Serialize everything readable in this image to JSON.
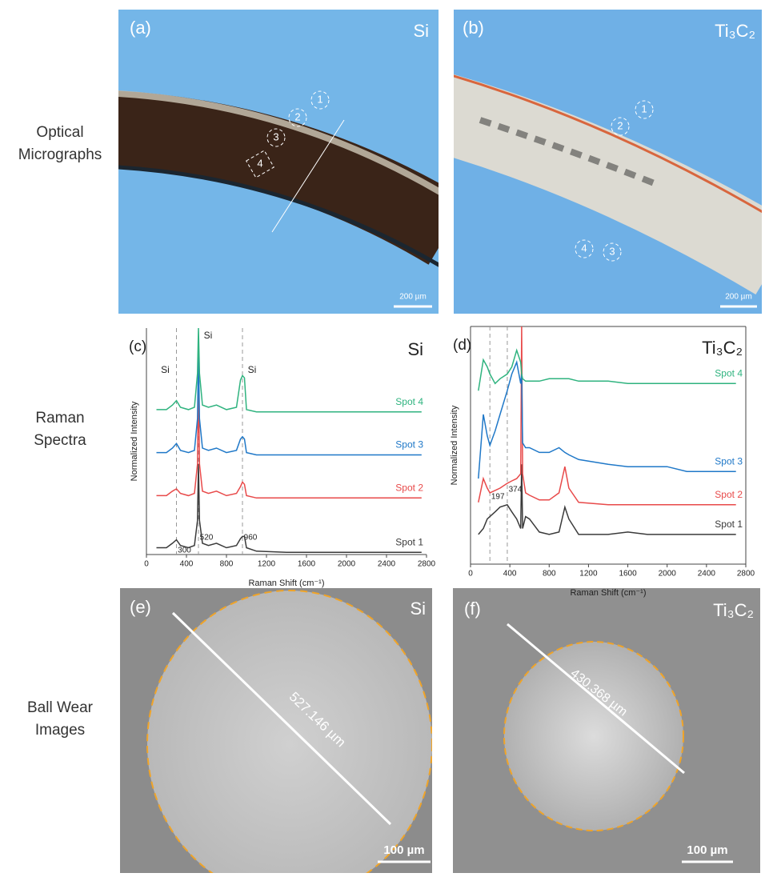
{
  "row_labels": [
    [
      "Optical",
      "Micrographs"
    ],
    [
      "Raman",
      "Spectra"
    ],
    [
      "Ball Wear",
      "Images"
    ]
  ],
  "micrographs": [
    {
      "label": "(a)",
      "title": "Si",
      "spots": [
        "1",
        "2",
        "3",
        "4"
      ],
      "scale_bar": "200 µm"
    },
    {
      "label": "(b)",
      "title": "Ti₃C₂",
      "spots": [
        "1",
        "2",
        "3",
        "4"
      ],
      "scale_bar": "200 µm"
    }
  ],
  "ball_wear": [
    {
      "label": "(e)",
      "title": "Si",
      "diameter": "527.146 µm",
      "scale_bar": "100 µm"
    },
    {
      "label": "(f)",
      "title": "Ti₃C₂",
      "diameter": "430.368 µm",
      "scale_bar": "100 µm"
    }
  ],
  "chart_data": [
    {
      "type": "line",
      "label": "(c)",
      "title": "Si",
      "xlabel": "Raman Shift (cm⁻¹)",
      "ylabel": "Normalized Intensity",
      "xlim": [
        0,
        2800
      ],
      "xticks": [
        0,
        400,
        800,
        1200,
        1600,
        2000,
        2400,
        2800
      ],
      "ylim": [
        0,
        10
      ],
      "x": [
        100,
        200,
        260,
        300,
        340,
        420,
        480,
        510,
        520,
        530,
        560,
        620,
        700,
        800,
        900,
        940,
        960,
        980,
        1000,
        1100,
        1400,
        1800,
        2200,
        2600,
        2750
      ],
      "series": [
        {
          "name": "Spot 1",
          "color": "#3a3a3a",
          "values": [
            0.3,
            0.3,
            0.5,
            0.65,
            0.4,
            0.3,
            0.4,
            1.5,
            4,
            1.5,
            0.5,
            0.4,
            0.5,
            0.3,
            0.4,
            0.7,
            0.8,
            0.8,
            0.3,
            0.15,
            0.1,
            0.1,
            0.1,
            0.1,
            0.1
          ]
        },
        {
          "name": "Spot 2",
          "color": "#e84a4a",
          "values": [
            2.6,
            2.6,
            2.8,
            2.9,
            2.7,
            2.6,
            2.7,
            4,
            8,
            4,
            2.8,
            2.7,
            2.8,
            2.6,
            2.7,
            3,
            3.2,
            3.1,
            2.6,
            2.5,
            2.5,
            2.5,
            2.5,
            2.5,
            2.5
          ]
        },
        {
          "name": "Spot 3",
          "color": "#1f78c8",
          "values": [
            4.5,
            4.5,
            4.7,
            4.9,
            4.6,
            4.5,
            4.6,
            6,
            9,
            6,
            4.7,
            4.6,
            4.7,
            4.5,
            4.6,
            5.1,
            5.2,
            5.1,
            4.5,
            4.4,
            4.4,
            4.4,
            4.4,
            4.4,
            4.4
          ]
        },
        {
          "name": "Spot 4",
          "color": "#2fb37f",
          "values": [
            6.4,
            6.4,
            6.6,
            6.8,
            6.5,
            6.4,
            6.5,
            8,
            10,
            8,
            6.6,
            6.5,
            6.6,
            6.4,
            6.5,
            7.7,
            7.9,
            7.8,
            6.4,
            6.3,
            6.3,
            6.3,
            6.3,
            6.3,
            6.3
          ]
        }
      ],
      "peak_labels": [
        300,
        520,
        960
      ],
      "annotations": [
        {
          "x": 300,
          "text": "Si"
        },
        {
          "x": 520,
          "text": "Si"
        },
        {
          "x": 960,
          "text": "Si"
        }
      ]
    },
    {
      "type": "line",
      "label": "(d)",
      "title": "Ti₃C₂",
      "xlabel": "Raman Shift (cm⁻¹)",
      "ylabel": "Normalized Intensity",
      "xlim": [
        0,
        2800
      ],
      "xticks": [
        0,
        400,
        800,
        1200,
        1600,
        2000,
        2400,
        2800
      ],
      "ylim": [
        0,
        10
      ],
      "x": [
        80,
        130,
        170,
        197,
        250,
        300,
        374,
        420,
        470,
        510,
        520,
        530,
        560,
        600,
        700,
        800,
        900,
        960,
        1000,
        1100,
        1400,
        1600,
        1800,
        2000,
        2200,
        2400,
        2700
      ],
      "series": [
        {
          "name": "Spot 1",
          "color": "#3a3a3a",
          "values": [
            1.25,
            1.5,
            1.9,
            2.0,
            2.2,
            2.4,
            2.5,
            2.2,
            1.9,
            1.5,
            4.2,
            1.5,
            2.0,
            1.9,
            1.35,
            1.25,
            1.35,
            2.4,
            1.9,
            1.25,
            1.25,
            1.35,
            1.25,
            1.25,
            1.25,
            1.25,
            1.25
          ]
        },
        {
          "name": "Spot 2",
          "color": "#e84a4a",
          "values": [
            2.6,
            3.6,
            3.2,
            3.0,
            3.1,
            3.2,
            3.4,
            3.5,
            3.6,
            3.8,
            10,
            3.8,
            3.0,
            2.9,
            2.7,
            2.7,
            3.0,
            4.1,
            3.2,
            2.6,
            2.5,
            2.5,
            2.5,
            2.5,
            2.5,
            2.5,
            2.5
          ]
        },
        {
          "name": "Spot 3",
          "color": "#1f78c8",
          "values": [
            3.6,
            6.3,
            5.4,
            5.0,
            5.6,
            6.3,
            7.3,
            8.0,
            8.5,
            7.6,
            8.0,
            5.1,
            4.9,
            4.9,
            4.7,
            4.7,
            4.9,
            4.7,
            4.6,
            4.4,
            4.2,
            4.1,
            4.1,
            4.1,
            3.9,
            3.9,
            3.9
          ]
        },
        {
          "name": "Spot 4",
          "color": "#2fb37f",
          "values": [
            7.3,
            8.6,
            8.3,
            8.0,
            7.6,
            7.8,
            8.0,
            8.3,
            9.0,
            8.5,
            8.0,
            7.8,
            7.7,
            7.7,
            7.7,
            7.8,
            7.8,
            7.8,
            7.8,
            7.7,
            7.7,
            7.6,
            7.6,
            7.6,
            7.6,
            7.6,
            7.6
          ]
        }
      ],
      "peak_labels": [
        197,
        374
      ]
    }
  ]
}
